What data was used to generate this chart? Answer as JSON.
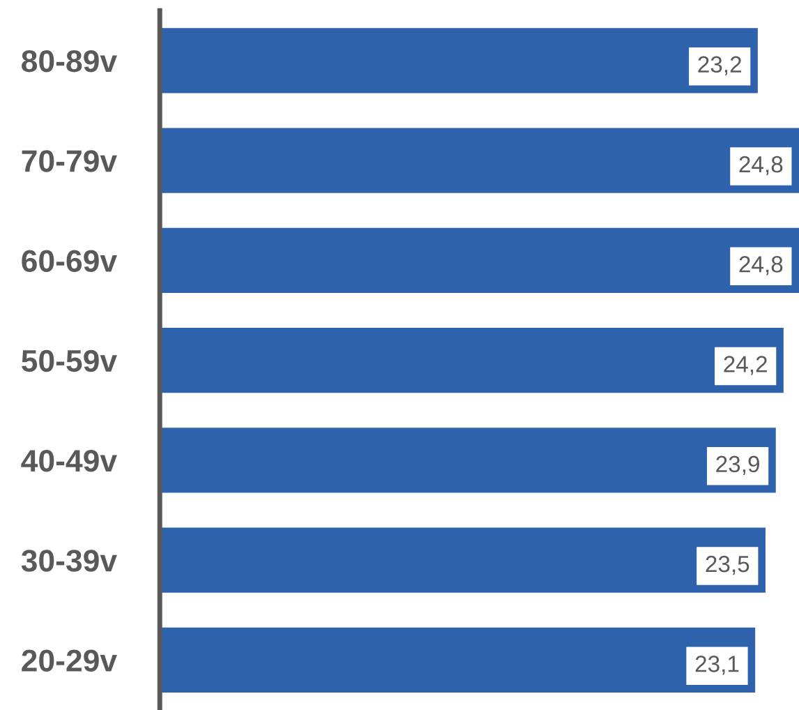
{
  "chart_data": {
    "type": "bar",
    "orientation": "horizontal",
    "categories": [
      "80-89v",
      "70-79v",
      "60-69v",
      "50-59v",
      "40-49v",
      "30-39v",
      "20-29v"
    ],
    "values": [
      23.2,
      24.8,
      24.8,
      24.2,
      23.9,
      23.5,
      23.1
    ],
    "value_labels": [
      "23,2",
      "24,8",
      "24,8",
      "24,2",
      "23,9",
      "23,5",
      "23,1"
    ],
    "color": "#2e62ad",
    "grid": false,
    "legend": false
  }
}
